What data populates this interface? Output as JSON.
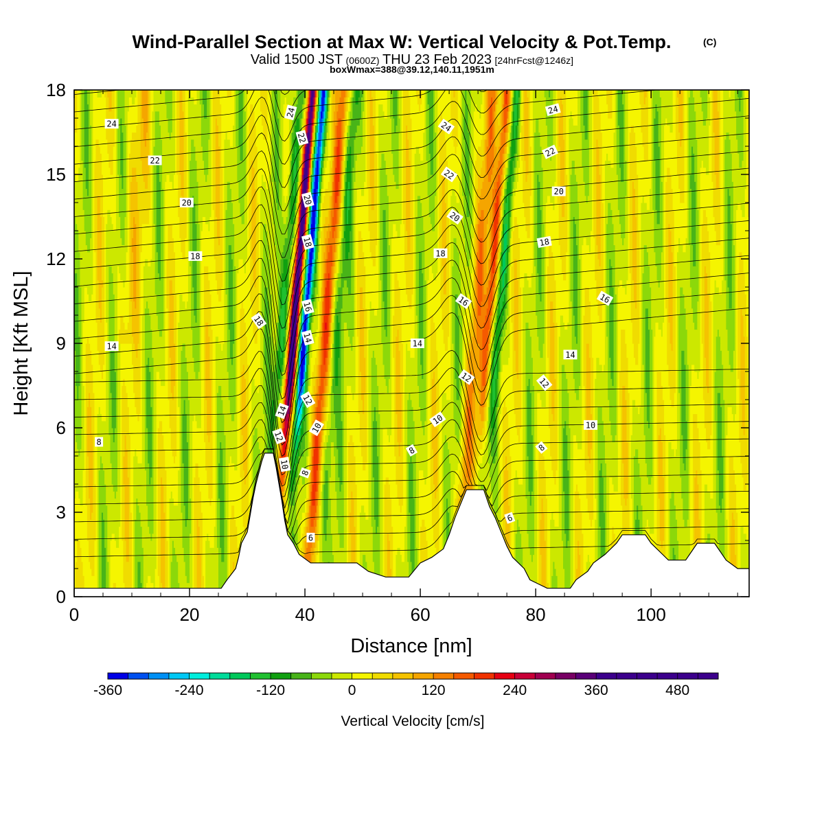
{
  "header": {
    "title": "Wind-Parallel Section at Max W: Vertical Velocity & Pot.Temp.",
    "title_mark": "(C)",
    "valid_a": "Valid 1500 JST",
    "valid_b": "(0600Z)",
    "valid_c": "THU 23 Feb 2023",
    "valid_d": "[24hrFcst@1246z]",
    "boxwmax": "boxWmax=388@39.12,140.11,1951m"
  },
  "chart_data": {
    "type": "contour-section",
    "xlabel": "Distance [nm]",
    "ylabel": "Height [Kft MSL]",
    "xlim": [
      0,
      117
    ],
    "ylim": [
      0,
      18
    ],
    "x_ticks": [
      "0",
      "20",
      "40",
      "60",
      "80",
      "100"
    ],
    "y_ticks": [
      "0",
      "3",
      "6",
      "9",
      "12",
      "15",
      "18"
    ],
    "grid": false,
    "filled_field": "Vertical Velocity [cm/s]",
    "contour_field": "Potential temperature",
    "terrain_kft": [
      [
        0,
        0.3
      ],
      [
        25.5,
        0.3
      ],
      [
        26.5,
        0.6
      ],
      [
        28,
        1.0
      ],
      [
        28.5,
        1.4
      ],
      [
        29,
        1.9
      ],
      [
        30,
        2.3
      ],
      [
        30.5,
        2.9
      ],
      [
        31,
        3.5
      ],
      [
        31.5,
        4.0
      ],
      [
        32.5,
        4.8
      ],
      [
        33,
        5.1
      ],
      [
        34.5,
        5.1
      ],
      [
        35,
        4.6
      ],
      [
        35.5,
        4.0
      ],
      [
        36,
        3.4
      ],
      [
        36.5,
        2.7
      ],
      [
        37,
        2.2
      ],
      [
        38,
        1.9
      ],
      [
        39,
        1.5
      ],
      [
        41,
        1.2
      ],
      [
        44,
        1.2
      ],
      [
        46,
        1.2
      ],
      [
        49,
        1.2
      ],
      [
        51,
        0.9
      ],
      [
        54,
        0.7
      ],
      [
        58,
        0.7
      ],
      [
        60,
        1.2
      ],
      [
        62,
        1.4
      ],
      [
        64,
        1.7
      ],
      [
        65,
        2.2
      ],
      [
        66,
        2.8
      ],
      [
        67,
        3.3
      ],
      [
        68,
        3.8
      ],
      [
        71,
        3.8
      ],
      [
        72,
        3.2
      ],
      [
        73,
        2.8
      ],
      [
        74,
        2.3
      ],
      [
        75,
        1.8
      ],
      [
        76,
        1.4
      ],
      [
        77,
        1.2
      ],
      [
        78,
        1.0
      ],
      [
        79,
        0.6
      ],
      [
        80,
        0.5
      ],
      [
        82,
        0.3
      ],
      [
        86,
        0.3
      ],
      [
        87,
        0.6
      ],
      [
        89,
        0.9
      ],
      [
        90,
        1.2
      ],
      [
        92,
        1.5
      ],
      [
        94,
        1.9
      ],
      [
        95,
        2.2
      ],
      [
        99,
        2.2
      ],
      [
        100,
        1.9
      ],
      [
        102,
        1.5
      ],
      [
        103,
        1.3
      ],
      [
        106,
        1.3
      ],
      [
        107,
        1.6
      ],
      [
        108,
        1.9
      ],
      [
        111,
        1.9
      ],
      [
        112,
        1.6
      ],
      [
        113,
        1.3
      ],
      [
        115,
        1.0
      ],
      [
        117,
        1.0
      ]
    ],
    "theta_levels_deg": [
      6,
      8,
      10,
      12,
      14,
      16,
      18,
      20,
      22,
      24
    ],
    "theta_labels": [
      {
        "text": "24",
        "x": 6.5,
        "y": 16.8,
        "angle": 0
      },
      {
        "text": "22",
        "x": 14,
        "y": 15.5,
        "angle": 0
      },
      {
        "text": "20",
        "x": 19.5,
        "y": 14.0,
        "angle": 0
      },
      {
        "text": "18",
        "x": 21,
        "y": 12.1,
        "angle": 0
      },
      {
        "text": "14",
        "x": 6.5,
        "y": 8.9,
        "angle": 0
      },
      {
        "text": "8",
        "x": 4.3,
        "y": 5.5,
        "angle": 0
      },
      {
        "text": "24",
        "x": 37.5,
        "y": 17.2,
        "angle": -75
      },
      {
        "text": "22",
        "x": 39.5,
        "y": 16.3,
        "angle": 75
      },
      {
        "text": "20",
        "x": 40.5,
        "y": 14.1,
        "angle": 75
      },
      {
        "text": "18",
        "x": 40.5,
        "y": 12.6,
        "angle": 75
      },
      {
        "text": "16",
        "x": 40.5,
        "y": 10.3,
        "angle": 75
      },
      {
        "text": "14",
        "x": 40.5,
        "y": 9.2,
        "angle": 75
      },
      {
        "text": "12",
        "x": 40.5,
        "y": 7.0,
        "angle": 60
      },
      {
        "text": "10",
        "x": 42,
        "y": 6.0,
        "angle": -60
      },
      {
        "text": "8",
        "x": 40,
        "y": 4.4,
        "angle": -70
      },
      {
        "text": "6",
        "x": 41,
        "y": 2.1,
        "angle": 0
      },
      {
        "text": "18",
        "x": 32,
        "y": 9.8,
        "angle": 55
      },
      {
        "text": "14",
        "x": 36,
        "y": 6.6,
        "angle": -70
      },
      {
        "text": "12",
        "x": 35.5,
        "y": 5.7,
        "angle": 70
      },
      {
        "text": "10",
        "x": 36.5,
        "y": 4.7,
        "angle": 80
      },
      {
        "text": "24",
        "x": 64.5,
        "y": 16.7,
        "angle": 35
      },
      {
        "text": "22",
        "x": 65,
        "y": 15.0,
        "angle": 35
      },
      {
        "text": "20",
        "x": 66,
        "y": 13.5,
        "angle": 35
      },
      {
        "text": "18",
        "x": 63.5,
        "y": 12.2,
        "angle": 0
      },
      {
        "text": "16",
        "x": 67.5,
        "y": 10.5,
        "angle": 35
      },
      {
        "text": "14",
        "x": 59.5,
        "y": 9.0,
        "angle": 0
      },
      {
        "text": "12",
        "x": 68,
        "y": 7.8,
        "angle": 35
      },
      {
        "text": "10",
        "x": 63,
        "y": 6.3,
        "angle": -35
      },
      {
        "text": "8",
        "x": 58.5,
        "y": 5.2,
        "angle": -30
      },
      {
        "text": "24",
        "x": 83,
        "y": 17.3,
        "angle": -15
      },
      {
        "text": "22",
        "x": 82.5,
        "y": 15.8,
        "angle": -25
      },
      {
        "text": "20",
        "x": 84,
        "y": 14.4,
        "angle": 0
      },
      {
        "text": "18",
        "x": 81.5,
        "y": 12.6,
        "angle": -10
      },
      {
        "text": "16",
        "x": 92,
        "y": 10.6,
        "angle": 30
      },
      {
        "text": "14",
        "x": 86,
        "y": 8.6,
        "angle": 0
      },
      {
        "text": "12",
        "x": 81.5,
        "y": 7.6,
        "angle": 50
      },
      {
        "text": "10",
        "x": 89.5,
        "y": 6.1,
        "angle": 0
      },
      {
        "text": "8",
        "x": 81,
        "y": 5.3,
        "angle": -40
      },
      {
        "text": "6",
        "x": 75.5,
        "y": 2.8,
        "angle": -20
      }
    ]
  },
  "colorbar": {
    "label": "Vertical Velocity [cm/s]",
    "tick_labels": [
      "-360",
      "-240",
      "-120",
      "0",
      "120",
      "240",
      "360",
      "480"
    ],
    "tick_values": [
      -360,
      -240,
      -120,
      0,
      120,
      240,
      360,
      480
    ],
    "min": -360,
    "max": 510,
    "step": 30,
    "colors": [
      "#0000e6",
      "#0050f0",
      "#0090f5",
      "#00c8f5",
      "#00eedd",
      "#00dc9a",
      "#00c85a",
      "#20c030",
      "#10a010",
      "#48b418",
      "#8cd80a",
      "#cce800",
      "#f5f500",
      "#f0dc00",
      "#f5c300",
      "#f5a500",
      "#f58000",
      "#f55a00",
      "#f03200",
      "#e60012",
      "#c80037",
      "#a00050",
      "#780064",
      "#5a0078",
      "#3c008c",
      "#3c008c",
      "#3c008c",
      "#3c008c",
      "#3c008c"
    ]
  }
}
